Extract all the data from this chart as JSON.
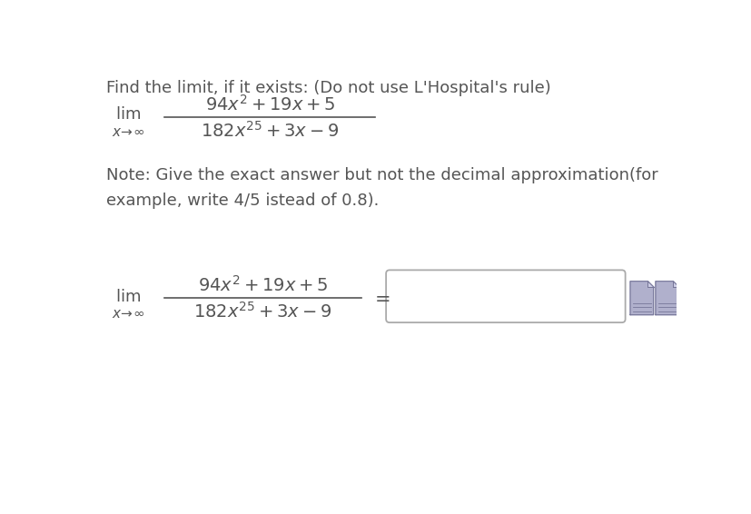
{
  "bg_color": "#ffffff",
  "title_text": "Find the limit, if it exists: (Do not use L'Hospital's rule)",
  "note_text": "Note: Give the exact answer but not the decimal approximation(for\nexample, write 4/5 istead of 0.8).",
  "numerator": "$94x^2 + 19x + 5$",
  "denominator": "$182x^{25} + 3x - 9$",
  "font_color": "#555555",
  "title_fontsize": 13,
  "note_fontsize": 13,
  "math_fontsize": 14,
  "lim_fontsize": 13,
  "sub_fontsize": 11,
  "box_color": "#ffffff",
  "box_edge_color": "#aaaaaa",
  "icon_color": "#b0b0cc",
  "icon_edge_color": "#777799"
}
